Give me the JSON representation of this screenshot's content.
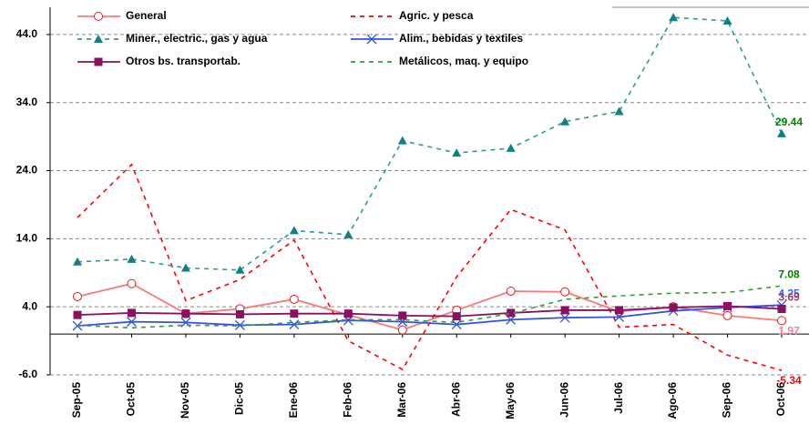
{
  "chart_data": {
    "type": "line",
    "categories": [
      "Sep-05",
      "Oct-05",
      "Nov-05",
      "Dic-05",
      "Ene-06",
      "Feb-06",
      "Mar-06",
      "Abr-06",
      "May-06",
      "Jun-06",
      "Jul-06",
      "Ago-06",
      "Sep-06",
      "Oct-06"
    ],
    "series": [
      {
        "name": "General",
        "color": "#f47c7c",
        "marker": "circle",
        "dashed": false,
        "label_color": "#f47c9c",
        "values": [
          5.5,
          7.4,
          3.0,
          3.7,
          5.1,
          2.8,
          0.6,
          3.5,
          6.3,
          6.2,
          3.3,
          4.0,
          2.7,
          1.97
        ]
      },
      {
        "name": "Agric. y pesca",
        "color": "#ff0000",
        "marker": "none",
        "dashed": true,
        "label_color": "#ff0000",
        "values": [
          17.1,
          24.9,
          4.9,
          8.0,
          13.8,
          -1.0,
          -5.2,
          8.4,
          18.3,
          15.3,
          1.0,
          1.4,
          -3.1,
          -5.34
        ]
      },
      {
        "name": "Miner., electric., gas y agua",
        "color": "#2e9a9a",
        "marker": "triangle",
        "dashed": true,
        "label_color": "#008000",
        "values": [
          10.6,
          11.0,
          9.7,
          9.4,
          15.2,
          14.6,
          28.4,
          26.6,
          27.3,
          31.2,
          32.7,
          46.5,
          46.0,
          29.44
        ]
      },
      {
        "name": "Alim., bebidas y textiles",
        "color": "#3355dd",
        "marker": "x",
        "dashed": false,
        "label_color": "#3366ee",
        "values": [
          1.2,
          1.8,
          1.7,
          1.3,
          1.4,
          2.0,
          1.8,
          1.4,
          2.1,
          2.4,
          2.5,
          3.4,
          3.9,
          4.25
        ]
      },
      {
        "name": "Otros bs. transportab.",
        "color": "#8a1060",
        "marker": "square",
        "dashed": false,
        "label_color": "#a04070",
        "values": [
          2.8,
          3.1,
          3.0,
          2.9,
          3.0,
          3.0,
          2.7,
          2.6,
          3.1,
          3.5,
          3.5,
          3.9,
          4.1,
          3.69
        ]
      },
      {
        "name": "Metálicos, maq. y equipo",
        "color": "#33a033",
        "marker": "none",
        "dashed": true,
        "label_color": "#008000",
        "values": [
          1.3,
          0.9,
          1.3,
          1.2,
          1.7,
          2.1,
          2.1,
          1.7,
          3.0,
          5.1,
          5.6,
          6.0,
          6.1,
          7.08
        ]
      }
    ],
    "ylim": [
      -6,
      48
    ],
    "yticks": [
      {
        "value": -6,
        "label": "-6.0"
      },
      {
        "value": 4,
        "label": "4.0"
      },
      {
        "value": 14,
        "label": "14.0"
      },
      {
        "value": 24,
        "label": "24.0"
      },
      {
        "value": 34,
        "label": "34.0"
      },
      {
        "value": 44,
        "label": "44.0"
      }
    ],
    "grid": true
  }
}
